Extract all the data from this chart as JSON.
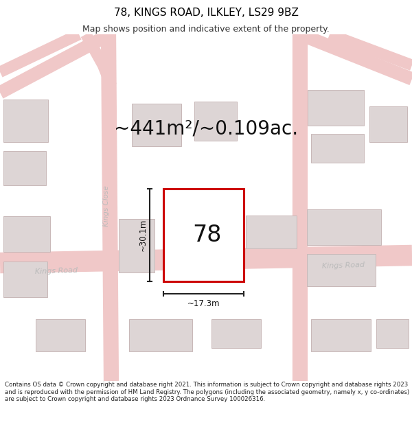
{
  "title_line1": "78, KINGS ROAD, ILKLEY, LS29 9BZ",
  "title_line2": "Map shows position and indicative extent of the property.",
  "footer_text": "Contains OS data © Crown copyright and database right 2021. This information is subject to Crown copyright and database rights 2023 and is reproduced with the permission of HM Land Registry. The polygons (including the associated geometry, namely x, y co-ordinates) are subject to Crown copyright and database rights 2023 Ordnance Survey 100026316.",
  "area_label": "~441m²/~0.109ac.",
  "number_label": "78",
  "dim_vertical": "~30.1m",
  "dim_horizontal": "~17.3m",
  "road_label_left": "Kings Road",
  "road_label_right": "Kings Road",
  "street_label": "Kings Close",
  "map_bg": "#f7f3f3",
  "road_color": "#f0c8c8",
  "building_fill": "#ddd5d5",
  "building_edge": "#c8b8b8",
  "highlight_rect_color": "#cc0000",
  "dim_line_color": "#222222",
  "title_fontsize": 11,
  "subtitle_fontsize": 9,
  "footer_fontsize": 6.2,
  "area_fontsize": 20,
  "number_fontsize": 24,
  "dim_fontsize": 8.5,
  "road_label_fontsize": 8,
  "street_label_fontsize": 7.5,
  "road_label_color": "#bbbbbb",
  "street_label_color": "#bbbbbb",
  "text_color": "#111111"
}
